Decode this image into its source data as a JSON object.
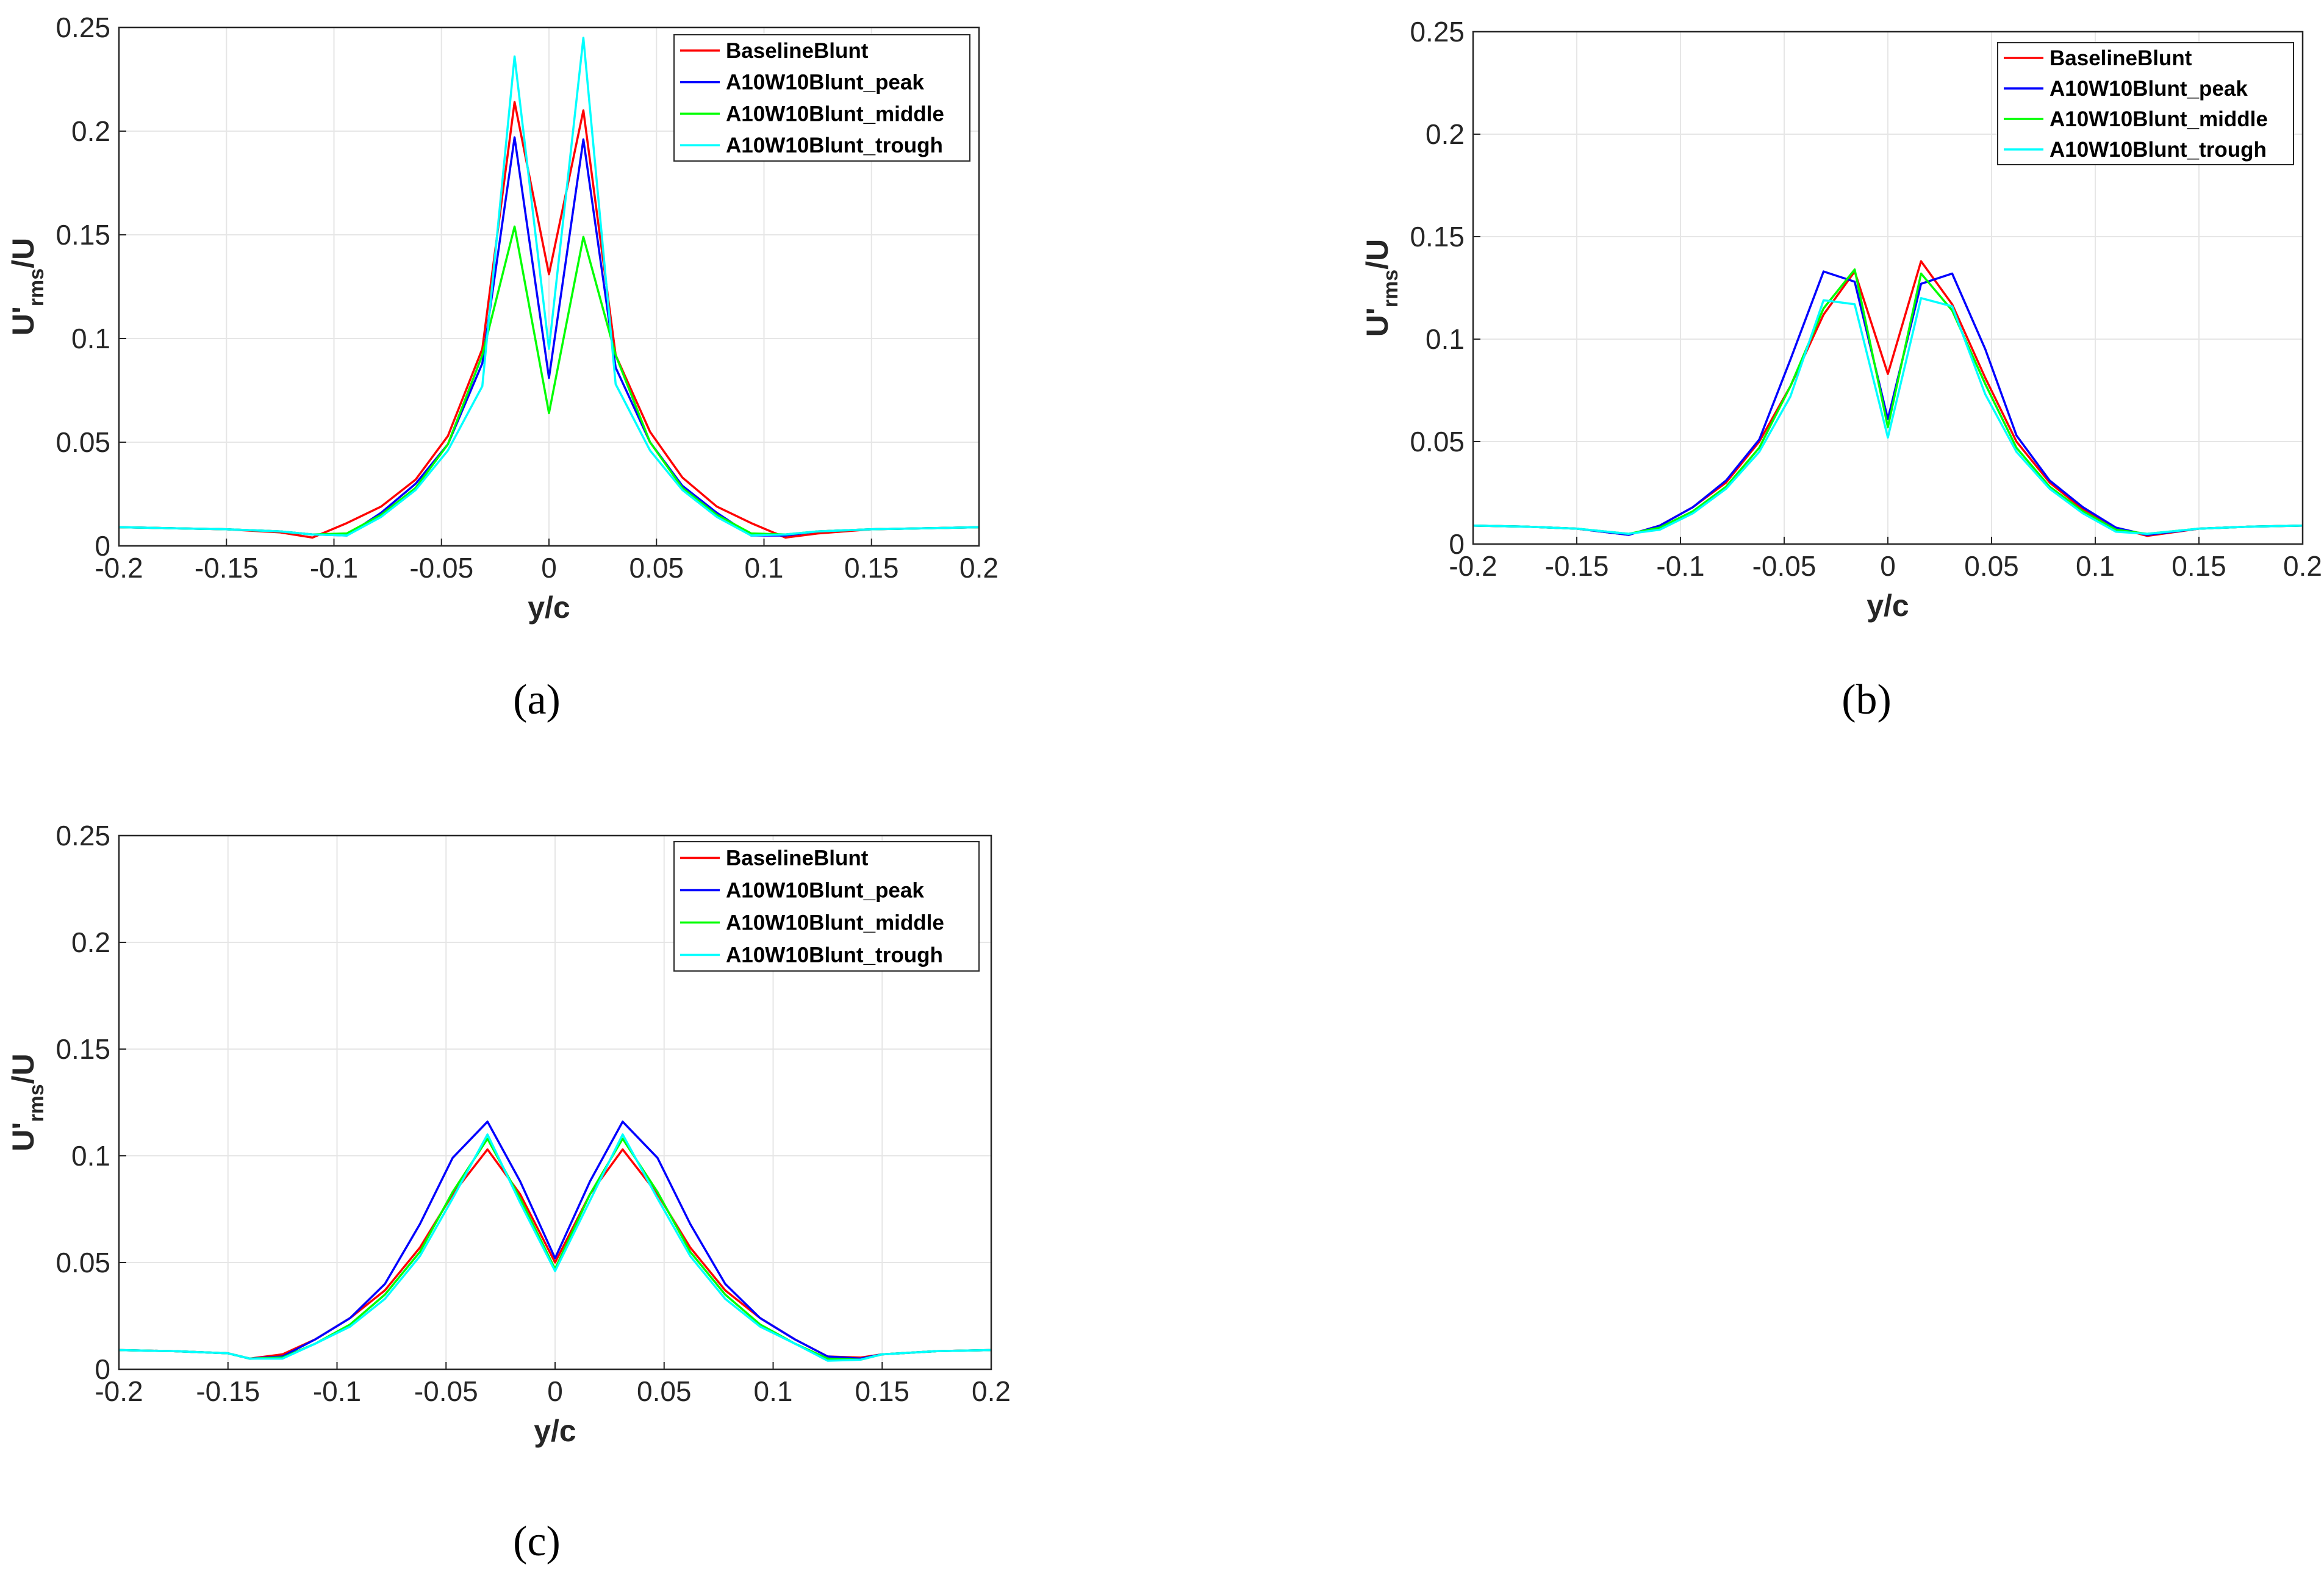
{
  "figure": {
    "captions": [
      "(a)",
      "(b)",
      "(c)"
    ],
    "colors": {
      "BaselineBlunt": "#ff0000",
      "A10W10Blunt_peak": "#0000ff",
      "A10W10Blunt_middle": "#00ff00",
      "A10W10Blunt_trough": "#00ffff",
      "grid": "#e6e6e6",
      "axes": "#262626"
    }
  },
  "chart_data": [
    {
      "type": "line",
      "caption": "(a)",
      "xlabel": "y/c",
      "ylabel": {
        "main": "U'",
        "sub": "rms",
        "tail": "/U"
      },
      "xlim": [
        -0.2,
        0.2
      ],
      "ylim": [
        0,
        0.25
      ],
      "xticks": [
        "-0.2",
        "-0.15",
        "-0.1",
        "-0.05",
        "0",
        "0.05",
        "0.1",
        "0.15",
        "0.2"
      ],
      "yticks": [
        "0",
        "0.05",
        "0.1",
        "0.15",
        "0.2",
        "0.25"
      ],
      "grid": true,
      "legend_position": "top-right",
      "x": [
        -0.2,
        -0.175,
        -0.15,
        -0.125,
        -0.11,
        -0.094,
        -0.078,
        -0.062,
        -0.047,
        -0.031,
        -0.016,
        0,
        0.016,
        0.031,
        0.047,
        0.062,
        0.078,
        0.094,
        0.11,
        0.125,
        0.15,
        0.175,
        0.2
      ],
      "series": [
        {
          "name": "BaselineBlunt",
          "values": [
            0.009,
            0.0085,
            0.008,
            0.0065,
            0.004,
            0.011,
            0.019,
            0.032,
            0.053,
            0.095,
            0.214,
            0.131,
            0.21,
            0.092,
            0.055,
            0.033,
            0.019,
            0.011,
            0.004,
            0.006,
            0.008,
            0.0085,
            0.009
          ]
        },
        {
          "name": "A10W10Blunt_peak",
          "values": [
            0.009,
            0.0085,
            0.008,
            0.007,
            0.0055,
            0.005,
            0.016,
            0.03,
            0.049,
            0.088,
            0.197,
            0.081,
            0.196,
            0.086,
            0.05,
            0.029,
            0.016,
            0.005,
            0.005,
            0.007,
            0.008,
            0.0085,
            0.009
          ]
        },
        {
          "name": "A10W10Blunt_middle",
          "values": [
            0.009,
            0.0085,
            0.008,
            0.007,
            0.0055,
            0.006,
            0.015,
            0.028,
            0.049,
            0.092,
            0.154,
            0.064,
            0.149,
            0.092,
            0.05,
            0.028,
            0.015,
            0.006,
            0.0055,
            0.007,
            0.008,
            0.0085,
            0.009
          ]
        },
        {
          "name": "A10W10Blunt_trough",
          "values": [
            0.009,
            0.0085,
            0.008,
            0.007,
            0.0055,
            0.005,
            0.014,
            0.027,
            0.046,
            0.077,
            0.236,
            0.095,
            0.245,
            0.078,
            0.046,
            0.027,
            0.014,
            0.005,
            0.0055,
            0.007,
            0.008,
            0.0085,
            0.009
          ]
        }
      ]
    },
    {
      "type": "line",
      "caption": "(b)",
      "xlabel": "y/c",
      "ylabel": {
        "main": "U'",
        "sub": "rms",
        "tail": "/U"
      },
      "xlim": [
        -0.2,
        0.2
      ],
      "ylim": [
        0,
        0.25
      ],
      "xticks": [
        "-0.2",
        "-0.15",
        "-0.1",
        "-0.05",
        "0",
        "0.05",
        "0.1",
        "0.15",
        "0.2"
      ],
      "yticks": [
        "0",
        "0.05",
        "0.1",
        "0.15",
        "0.2",
        "0.25"
      ],
      "grid": true,
      "legend_position": "top-right",
      "x": [
        -0.2,
        -0.175,
        -0.15,
        -0.125,
        -0.11,
        -0.094,
        -0.078,
        -0.062,
        -0.047,
        -0.031,
        -0.016,
        0,
        0.016,
        0.031,
        0.047,
        0.062,
        0.078,
        0.094,
        0.11,
        0.125,
        0.15,
        0.175,
        0.2
      ],
      "series": [
        {
          "name": "BaselineBlunt",
          "values": [
            0.009,
            0.0085,
            0.0075,
            0.0045,
            0.009,
            0.018,
            0.03,
            0.05,
            0.077,
            0.112,
            0.133,
            0.083,
            0.138,
            0.117,
            0.081,
            0.05,
            0.03,
            0.017,
            0.008,
            0.004,
            0.0075,
            0.0085,
            0.009
          ]
        },
        {
          "name": "A10W10Blunt_peak",
          "values": [
            0.009,
            0.0085,
            0.0075,
            0.0045,
            0.009,
            0.018,
            0.031,
            0.051,
            0.09,
            0.133,
            0.128,
            0.061,
            0.127,
            0.132,
            0.095,
            0.053,
            0.031,
            0.018,
            0.008,
            0.0045,
            0.0075,
            0.0085,
            0.009
          ]
        },
        {
          "name": "A10W10Blunt_middle",
          "values": [
            0.009,
            0.0085,
            0.0075,
            0.005,
            0.008,
            0.016,
            0.028,
            0.047,
            0.077,
            0.115,
            0.134,
            0.057,
            0.132,
            0.114,
            0.078,
            0.047,
            0.028,
            0.016,
            0.007,
            0.005,
            0.0075,
            0.0085,
            0.009
          ]
        },
        {
          "name": "A10W10Blunt_trough",
          "values": [
            0.009,
            0.0085,
            0.0075,
            0.005,
            0.007,
            0.015,
            0.027,
            0.045,
            0.072,
            0.119,
            0.117,
            0.052,
            0.12,
            0.116,
            0.073,
            0.045,
            0.027,
            0.015,
            0.006,
            0.005,
            0.0075,
            0.0085,
            0.009
          ]
        }
      ]
    },
    {
      "type": "line",
      "caption": "(c)",
      "xlabel": "y/c",
      "ylabel": {
        "main": "U'",
        "sub": "rms",
        "tail": "/U"
      },
      "xlim": [
        -0.2,
        0.2
      ],
      "ylim": [
        0,
        0.25
      ],
      "xticks": [
        "-0.2",
        "-0.15",
        "-0.1",
        "-0.05",
        "0",
        "0.05",
        "0.1",
        "0.15",
        "0.2"
      ],
      "yticks": [
        "0",
        "0.05",
        "0.1",
        "0.15",
        "0.2",
        "0.25"
      ],
      "grid": true,
      "legend_position": "top-right",
      "x": [
        -0.2,
        -0.175,
        -0.15,
        -0.14,
        -0.125,
        -0.11,
        -0.094,
        -0.078,
        -0.062,
        -0.047,
        -0.031,
        -0.016,
        0,
        0.016,
        0.031,
        0.047,
        0.062,
        0.078,
        0.094,
        0.11,
        0.125,
        0.14,
        0.15,
        0.175,
        0.2
      ],
      "series": [
        {
          "name": "BaselineBlunt",
          "values": [
            0.009,
            0.0085,
            0.0075,
            0.005,
            0.007,
            0.014,
            0.024,
            0.037,
            0.057,
            0.082,
            0.103,
            0.082,
            0.05,
            0.082,
            0.103,
            0.082,
            0.057,
            0.037,
            0.024,
            0.014,
            0.006,
            0.0055,
            0.007,
            0.0085,
            0.009
          ]
        },
        {
          "name": "A10W10Blunt_peak",
          "values": [
            0.009,
            0.0085,
            0.0075,
            0.005,
            0.006,
            0.014,
            0.024,
            0.04,
            0.068,
            0.099,
            0.116,
            0.088,
            0.052,
            0.088,
            0.116,
            0.099,
            0.068,
            0.04,
            0.024,
            0.014,
            0.006,
            0.005,
            0.007,
            0.0085,
            0.009
          ]
        },
        {
          "name": "A10W10Blunt_middle",
          "values": [
            0.009,
            0.0085,
            0.0075,
            0.005,
            0.0055,
            0.012,
            0.021,
            0.035,
            0.055,
            0.083,
            0.108,
            0.08,
            0.047,
            0.082,
            0.108,
            0.083,
            0.055,
            0.035,
            0.021,
            0.012,
            0.005,
            0.0045,
            0.007,
            0.0085,
            0.009
          ]
        },
        {
          "name": "A10W10Blunt_trough",
          "values": [
            0.009,
            0.0085,
            0.0075,
            0.005,
            0.005,
            0.012,
            0.02,
            0.033,
            0.053,
            0.08,
            0.11,
            0.078,
            0.046,
            0.079,
            0.11,
            0.08,
            0.053,
            0.033,
            0.02,
            0.012,
            0.004,
            0.0045,
            0.007,
            0.0085,
            0.009
          ]
        }
      ]
    }
  ]
}
